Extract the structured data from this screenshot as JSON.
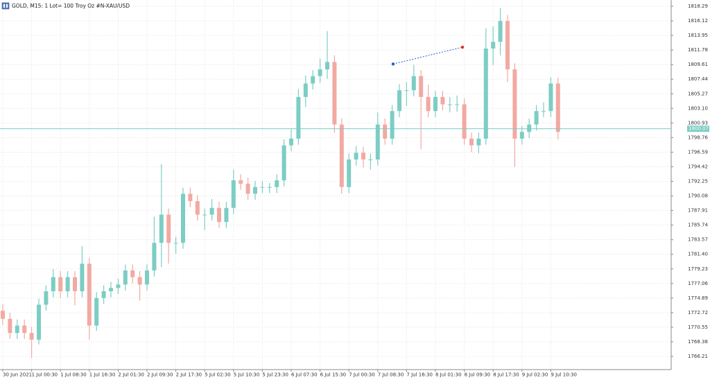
{
  "chart_data": {
    "type": "candlestick",
    "title": "GOLD, M15:  1 Lot= 100 Troy Oz #N-XAU/USD",
    "categories": [
      "30 Jun 2021",
      null,
      null,
      null,
      "1 Jul 00:30",
      null,
      null,
      null,
      "1 Jul 08:30",
      null,
      null,
      null,
      "1 Jul 16:30",
      null,
      null,
      null,
      "2 Jul 01:30",
      null,
      null,
      null,
      "2 Jul 09:30",
      null,
      null,
      null,
      "2 Jul 17:30",
      null,
      null,
      null,
      "5 Jul 02:30",
      null,
      null,
      null,
      "5 Jul 10:30",
      null,
      null,
      null,
      "5 Jul 23:30",
      null,
      null,
      null,
      "6 Jul 07:30",
      null,
      null,
      null,
      "6 Jul 15:30",
      null,
      null,
      null,
      "7 Jul 00:30",
      null,
      null,
      null,
      "7 Jul 08:30",
      null,
      null,
      null,
      "7 Jul 16:30",
      null,
      null,
      null,
      "8 Jul 01:30",
      null,
      null,
      null,
      "8 Jul 09:30",
      null,
      null,
      null,
      "8 Jul 17:30",
      null,
      null,
      null,
      "9 Jul 02:30",
      null,
      null,
      null,
      "9 Jul 10:30",
      null
    ],
    "open": [
      1773.0,
      1771.8,
      1769.7,
      1770.8,
      1769.7,
      1768.7,
      1773.9,
      1775.9,
      1778.0,
      1775.9,
      1778.0,
      1775.9,
      1780.0,
      1770.8,
      1774.9,
      1775.9,
      1776.4,
      1776.9,
      1779.0,
      1778.0,
      1776.9,
      1779.0,
      1783.1,
      1787.3,
      1783.1,
      1783.1,
      1790.4,
      1789.3,
      1787.3,
      1787.3,
      1788.3,
      1786.2,
      1788.3,
      1792.4,
      1791.9,
      1790.4,
      1791.4,
      1791.4,
      1791.4,
      1792.4,
      1797.6,
      1798.6,
      1804.8,
      1806.8,
      1807.9,
      1808.9,
      1810.0,
      1800.7,
      1791.4,
      1795.5,
      1796.5,
      1795.5,
      1795.5,
      1800.7,
      1798.6,
      1802.7,
      1805.8,
      1805.8,
      1807.9,
      1804.8,
      1802.7,
      1804.8,
      1803.7,
      1803.7,
      1803.7,
      1798.6,
      1797.6,
      1798.6,
      1812.0,
      1813.0,
      1816.1,
      1808.9,
      1798.6,
      1799.6,
      1800.7,
      1802.7,
      1802.7,
      1806.8
    ],
    "high": [
      1774.0,
      1772.7,
      1771.7,
      1771.7,
      1770.6,
      1774.8,
      1776.8,
      1779.2,
      1778.9,
      1778.9,
      1778.9,
      1782.6,
      1780.9,
      1775.8,
      1776.8,
      1777.3,
      1777.8,
      1779.9,
      1779.9,
      1778.9,
      1779.9,
      1787.0,
      1794.8,
      1788.2,
      1784.0,
      1791.3,
      1791.3,
      1790.2,
      1788.2,
      1789.6,
      1789.2,
      1789.2,
      1794.0,
      1793.3,
      1792.8,
      1792.3,
      1792.3,
      1792.0,
      1793.3,
      1798.5,
      1800.0,
      1806.0,
      1808.0,
      1808.8,
      1810.5,
      1814.6,
      1811.0,
      1801.6,
      1796.4,
      1797.5,
      1797.4,
      1796.4,
      1802.5,
      1801.6,
      1803.6,
      1806.7,
      1807.0,
      1809.6,
      1808.8,
      1806.6,
      1805.7,
      1805.7,
      1804.8,
      1805.0,
      1804.6,
      1799.5,
      1799.5,
      1815.0,
      1815.3,
      1818.0,
      1817.0,
      1809.8,
      1800.5,
      1801.6,
      1803.6,
      1804.0,
      1807.7,
      1807.7
    ],
    "low": [
      1770.9,
      1768.8,
      1768.8,
      1768.8,
      1766.0,
      1768.0,
      1773.0,
      1775.0,
      1774.9,
      1775.0,
      1773.8,
      1775.0,
      1768.7,
      1770.0,
      1774.0,
      1775.0,
      1775.5,
      1776.0,
      1777.1,
      1774.5,
      1776.0,
      1778.1,
      1779.5,
      1780.0,
      1781.5,
      1782.2,
      1788.4,
      1786.4,
      1785.0,
      1786.4,
      1785.3,
      1785.3,
      1787.4,
      1791.0,
      1789.5,
      1789.5,
      1790.5,
      1790.5,
      1790.5,
      1791.5,
      1796.7,
      1797.7,
      1803.3,
      1805.9,
      1806.9,
      1807.5,
      1799.5,
      1790.4,
      1790.5,
      1794.6,
      1794.3,
      1794.0,
      1794.6,
      1797.7,
      1797.7,
      1801.8,
      1803.5,
      1804.9,
      1797.0,
      1801.8,
      1801.8,
      1802.8,
      1802.5,
      1802.6,
      1797.7,
      1796.6,
      1796.4,
      1797.7,
      1809.5,
      1811.0,
      1807.0,
      1794.4,
      1797.7,
      1798.7,
      1799.8,
      1801.8,
      1801.8,
      1798.5
    ],
    "close": [
      1771.8,
      1769.7,
      1770.8,
      1769.7,
      1768.7,
      1773.9,
      1775.9,
      1778.0,
      1775.9,
      1778.0,
      1775.9,
      1780.0,
      1770.8,
      1774.9,
      1775.9,
      1776.4,
      1776.9,
      1779.0,
      1778.0,
      1776.9,
      1779.0,
      1783.1,
      1787.3,
      1783.1,
      1783.1,
      1790.4,
      1789.3,
      1787.3,
      1787.3,
      1788.3,
      1786.2,
      1788.3,
      1792.4,
      1791.9,
      1790.4,
      1791.4,
      1791.4,
      1791.4,
      1792.4,
      1797.6,
      1798.6,
      1804.8,
      1806.8,
      1807.9,
      1808.9,
      1810.0,
      1800.7,
      1791.4,
      1795.5,
      1796.5,
      1795.5,
      1795.5,
      1800.7,
      1798.6,
      1802.7,
      1805.8,
      1805.8,
      1807.9,
      1804.8,
      1802.7,
      1804.8,
      1803.7,
      1803.7,
      1803.7,
      1798.6,
      1797.6,
      1798.6,
      1812.0,
      1813.0,
      1816.1,
      1808.9,
      1798.6,
      1799.6,
      1800.7,
      1802.7,
      1802.7,
      1806.8,
      1799.6
    ],
    "up_color": "#7ccdc4",
    "down_color": "#f2a9a2",
    "ylim": [
      1764.25,
      1819.22
    ],
    "yticks": [
      1766.21,
      1768.38,
      1770.55,
      1772.72,
      1774.89,
      1777.06,
      1779.23,
      {
        "value": 1781.4,
        "label": "1781.40"
      },
      1783.57,
      1785.74,
      1787.91,
      1790.08,
      1792.25,
      1794.42,
      1796.59,
      1798.76,
      1800.93,
      {
        "value": 1803.1,
        "label": "1803.10"
      },
      1805.27,
      1807.44,
      1809.61,
      1811.78,
      1813.95,
      1816.12,
      1818.29
    ],
    "grid": true,
    "current_price": 1800.07,
    "current_price_color": "#7ccdc4",
    "trade_open": 1809.7,
    "trade_close": 1812.2,
    "trade_open_color": "#1e5fd0",
    "trade_close_color": "#e03030"
  }
}
